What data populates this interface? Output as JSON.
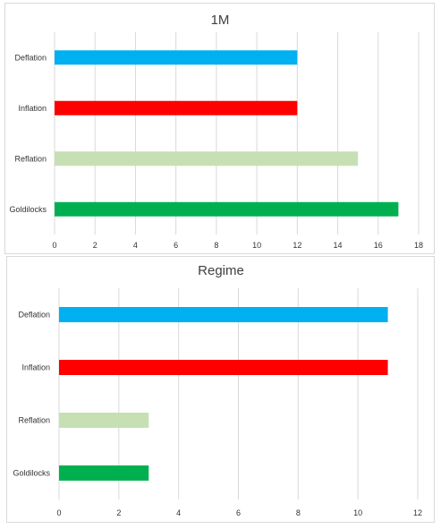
{
  "chart_data": [
    {
      "type": "bar",
      "orientation": "horizontal",
      "title": "1M",
      "categories": [
        "Deflation",
        "Inflation",
        "Reflation",
        "Goldilocks"
      ],
      "values": [
        12,
        12,
        15,
        17
      ],
      "colors": [
        "#00b0f0",
        "#ff0000",
        "#c6e0b4",
        "#00b050"
      ],
      "xlim": [
        0,
        18
      ],
      "xticks": [
        "0",
        "2",
        "4",
        "6",
        "8",
        "10",
        "12",
        "14",
        "16",
        "18"
      ],
      "grid": true,
      "legend": "none"
    },
    {
      "type": "bar",
      "orientation": "horizontal",
      "title": "Regime",
      "categories": [
        "Deflation",
        "Inflation",
        "Reflation",
        "Goldilocks"
      ],
      "values": [
        11,
        11,
        3,
        3
      ],
      "colors": [
        "#00b0f0",
        "#ff0000",
        "#c6e0b4",
        "#00b050"
      ],
      "xlim": [
        0,
        12
      ],
      "xticks": [
        "0",
        "2",
        "4",
        "6",
        "8",
        "10",
        "12"
      ],
      "grid": true,
      "legend": "none"
    }
  ]
}
